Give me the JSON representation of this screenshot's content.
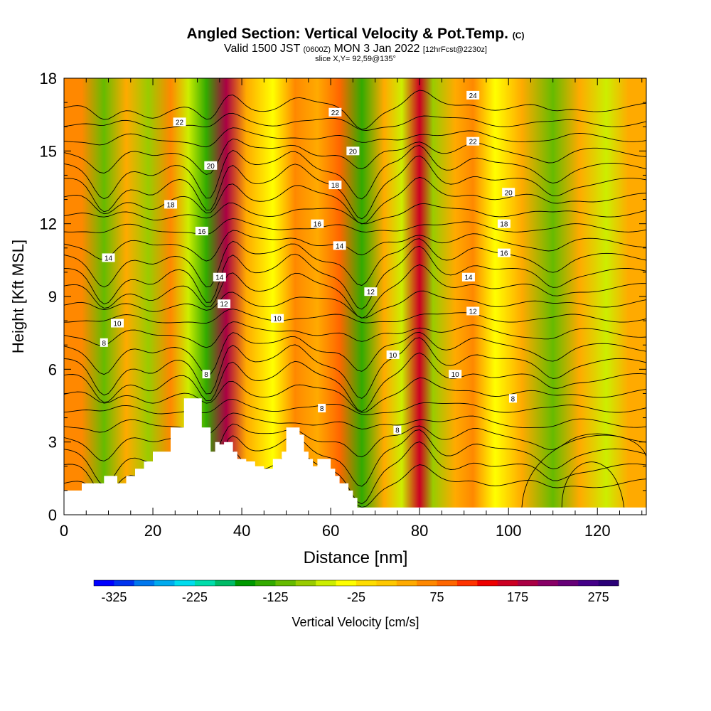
{
  "title": {
    "main": "Angled Section: Vertical Velocity & Pot.Temp.",
    "copyright": "(C)",
    "valid_prefix": "Valid 1500 JST",
    "valid_z": "(0600Z)",
    "valid_date": "MON 3 Jan 2022",
    "forecast": "[12hrFcst@2230z]",
    "slice": "slice X,Y= 92,59@135°"
  },
  "chart_data": {
    "type": "heatmap",
    "xlabel": "Distance [nm]",
    "ylabel": "Height [Kft MSL]",
    "xlim": [
      0,
      131
    ],
    "ylim": [
      0,
      18
    ],
    "x_ticks": [
      0,
      20,
      40,
      60,
      80,
      100,
      120
    ],
    "y_ticks": [
      0,
      3,
      6,
      9,
      12,
      15,
      18
    ],
    "colorbar": {
      "label": "Vertical Velocity [cm/s]",
      "min": -350,
      "max": 300,
      "step": 25,
      "tick_values": [
        -325,
        -225,
        -125,
        -25,
        75,
        175,
        275
      ],
      "tick_labels": [
        "-325",
        "-225",
        "-125",
        "-25",
        "75",
        "175",
        "275"
      ],
      "colors": [
        "#0000ff",
        "#0033ee",
        "#0077ee",
        "#00aaee",
        "#00ddee",
        "#00ddaa",
        "#00bb66",
        "#009900",
        "#33aa00",
        "#66bb00",
        "#99cc00",
        "#ccee00",
        "#ffff00",
        "#ffdd00",
        "#ffc800",
        "#ffaa00",
        "#ff8800",
        "#ff6600",
        "#ff3300",
        "#ee0000",
        "#cc0022",
        "#aa0044",
        "#880066",
        "#660077",
        "#440088",
        "#2a0077"
      ]
    },
    "vertical_velocity_bands": [
      {
        "x": 4,
        "value": 60
      },
      {
        "x": 9,
        "value": -110
      },
      {
        "x": 14,
        "value": 40
      },
      {
        "x": 19,
        "value": -80
      },
      {
        "x": 24,
        "value": 50
      },
      {
        "x": 28,
        "value": -60
      },
      {
        "x": 32,
        "value": -130
      },
      {
        "x": 36.5,
        "value": 180
      },
      {
        "x": 41,
        "value": 40
      },
      {
        "x": 47,
        "value": -40
      },
      {
        "x": 52,
        "value": 50
      },
      {
        "x": 57,
        "value": 30
      },
      {
        "x": 62,
        "value": 75
      },
      {
        "x": 67,
        "value": -150
      },
      {
        "x": 72,
        "value": 40
      },
      {
        "x": 76,
        "value": -60
      },
      {
        "x": 80,
        "value": 170
      },
      {
        "x": 83,
        "value": -80
      },
      {
        "x": 88,
        "value": 30
      },
      {
        "x": 92,
        "value": 60
      },
      {
        "x": 97,
        "value": -40
      },
      {
        "x": 103,
        "value": 40
      },
      {
        "x": 110,
        "value": -110
      },
      {
        "x": 116,
        "value": 30
      },
      {
        "x": 122,
        "value": -60
      },
      {
        "x": 127,
        "value": 40
      }
    ],
    "theta_contour_labels": [
      {
        "value": "8",
        "x": 9,
        "y": 7.1
      },
      {
        "value": "10",
        "x": 12,
        "y": 7.9
      },
      {
        "value": "14",
        "x": 10,
        "y": 10.6
      },
      {
        "value": "18",
        "x": 24,
        "y": 12.8
      },
      {
        "value": "16",
        "x": 31,
        "y": 11.7
      },
      {
        "value": "22",
        "x": 26,
        "y": 16.2
      },
      {
        "value": "20",
        "x": 33,
        "y": 14.4
      },
      {
        "value": "14",
        "x": 35,
        "y": 9.8
      },
      {
        "value": "12",
        "x": 36,
        "y": 8.7
      },
      {
        "value": "8",
        "x": 32,
        "y": 5.8
      },
      {
        "value": "10",
        "x": 48,
        "y": 8.1
      },
      {
        "value": "16",
        "x": 57,
        "y": 12
      },
      {
        "value": "18",
        "x": 61,
        "y": 13.6
      },
      {
        "value": "14",
        "x": 62,
        "y": 11.1
      },
      {
        "value": "22",
        "x": 61,
        "y": 16.6
      },
      {
        "value": "20",
        "x": 65,
        "y": 15
      },
      {
        "value": "8",
        "x": 58,
        "y": 4.4
      },
      {
        "value": "12",
        "x": 69,
        "y": 9.2
      },
      {
        "value": "10",
        "x": 74,
        "y": 6.6
      },
      {
        "value": "8",
        "x": 75,
        "y": 3.5
      },
      {
        "value": "10",
        "x": 88,
        "y": 5.8
      },
      {
        "value": "24",
        "x": 92,
        "y": 17.3
      },
      {
        "value": "22",
        "x": 92,
        "y": 15.4
      },
      {
        "value": "20",
        "x": 100,
        "y": 13.3
      },
      {
        "value": "18",
        "x": 99,
        "y": 12
      },
      {
        "value": "16",
        "x": 99,
        "y": 10.8
      },
      {
        "value": "14",
        "x": 91,
        "y": 9.8
      },
      {
        "value": "12",
        "x": 92,
        "y": 8.4
      },
      {
        "value": "8",
        "x": 101,
        "y": 4.8
      }
    ],
    "terrain_profile": {
      "x": [
        0,
        4,
        4,
        9,
        9,
        12,
        12,
        14,
        14,
        16,
        16,
        18,
        18,
        20,
        20,
        22,
        22,
        24,
        24,
        27,
        27,
        28,
        28,
        31,
        31,
        33,
        33,
        34,
        34,
        35,
        35,
        36,
        36,
        38,
        38,
        39,
        39,
        41,
        41,
        43,
        43,
        45,
        45,
        47,
        47,
        49,
        49,
        50,
        50,
        53,
        53,
        54,
        54,
        55,
        55,
        56,
        56,
        57,
        57,
        59,
        59,
        60,
        60,
        61,
        61,
        62,
        62,
        64,
        64,
        65,
        65,
        66,
        66,
        70,
        70,
        131
      ],
      "y": [
        1,
        1,
        1.3,
        1.3,
        1.6,
        1.6,
        1.3,
        1.3,
        1.6,
        1.6,
        1.9,
        1.9,
        2.2,
        2.2,
        2.6,
        2.6,
        2.6,
        2.6,
        3.6,
        3.6,
        4.8,
        4.8,
        4.8,
        4.8,
        3.6,
        3.6,
        2.6,
        2.6,
        3.0,
        3.0,
        2.9,
        2.9,
        3.0,
        3.0,
        2.6,
        2.6,
        2.3,
        2.3,
        2.2,
        2.2,
        2.0,
        2.0,
        1.9,
        1.9,
        2.3,
        2.3,
        2.6,
        2.6,
        3.6,
        3.6,
        3.3,
        3.3,
        2.6,
        2.6,
        2.3,
        2.3,
        2.0,
        2.0,
        2.3,
        2.3,
        2.3,
        2.3,
        1.9,
        1.9,
        1.6,
        1.6,
        1.3,
        1.3,
        1.0,
        1.0,
        0.7,
        0.7,
        0.3,
        0.3,
        0.3,
        0.3
      ]
    }
  }
}
